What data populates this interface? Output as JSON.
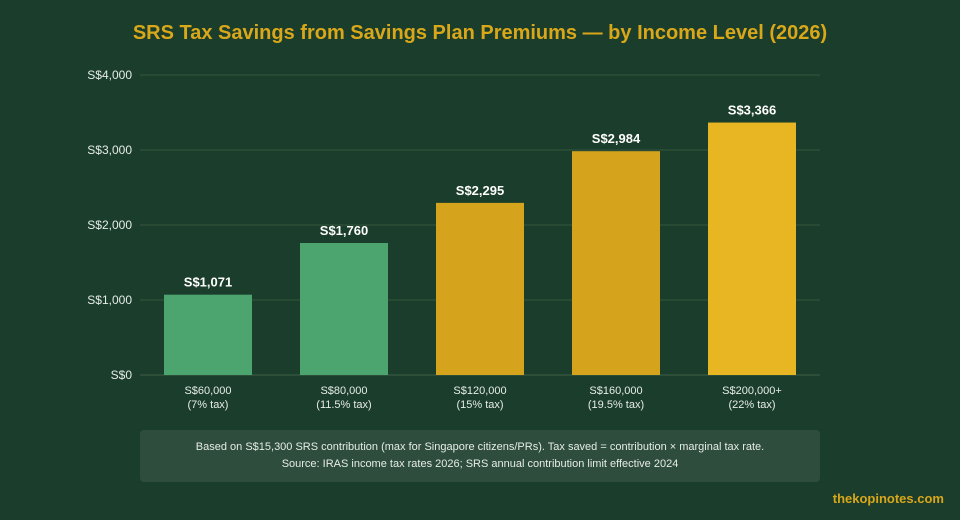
{
  "title": "SRS Tax Savings from Savings Plan Premiums — by Income Level (2026)",
  "chart_data": {
    "type": "bar",
    "categories": [
      [
        "S$60,000",
        "(7% tax)"
      ],
      [
        "S$80,000",
        "(11.5% tax)"
      ],
      [
        "S$120,000",
        "(15% tax)"
      ],
      [
        "S$160,000",
        "(19.5% tax)"
      ],
      [
        "S$200,000+",
        "(22% tax)"
      ]
    ],
    "values": [
      1071,
      1760,
      2295,
      2984,
      3366
    ],
    "value_labels": [
      "S$1,071",
      "S$1,760",
      "S$2,295",
      "S$2,984",
      "S$3,366"
    ],
    "bar_colors": [
      "#4ca46f",
      "#4ca46f",
      "#d6a41c",
      "#d6a41c",
      "#e8b623"
    ],
    "ylim": [
      0,
      4000
    ],
    "yticks": [
      0,
      1000,
      2000,
      3000,
      4000
    ],
    "ytick_labels": [
      "S$0",
      "S$1,000",
      "S$2,000",
      "S$3,000",
      "S$4,000"
    ],
    "grid": true,
    "xlabel": "",
    "ylabel": ""
  },
  "note": {
    "line1": "Based on S$15,300 SRS contribution (max for Singapore citizens/PRs). Tax saved = contribution × marginal tax rate.",
    "line2": "Source: IRAS income tax rates 2026; SRS annual contribution limit effective 2024"
  },
  "watermark": "thekopinotes.com",
  "colors": {
    "background": "#1b3d2b",
    "title": "#d9a71a",
    "grid": "#35573f",
    "axis_text": "#e6ece8"
  }
}
